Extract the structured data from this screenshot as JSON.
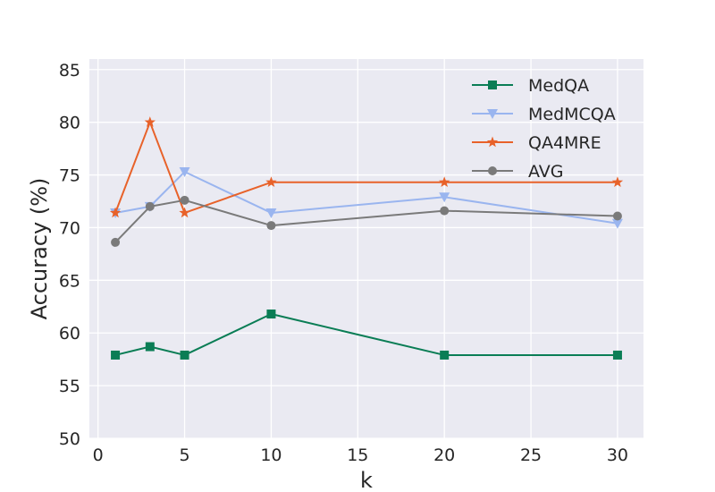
{
  "chart_data": {
    "type": "line",
    "title": "",
    "xlabel": "k",
    "ylabel": "Accuracy (%)",
    "xlim": [
      -0.5,
      31.5
    ],
    "ylim": [
      50,
      86
    ],
    "xticks": [
      0,
      5,
      10,
      15,
      20,
      25,
      30
    ],
    "yticks": [
      50,
      55,
      60,
      65,
      70,
      75,
      80,
      85
    ],
    "grid": true,
    "legend_position": "top-right",
    "x": [
      1,
      3,
      5,
      10,
      20,
      30
    ],
    "series": [
      {
        "name": "MedQA",
        "color": "#0a7d55",
        "marker": "square",
        "values": [
          57.9,
          58.7,
          57.9,
          61.8,
          57.9,
          57.9
        ]
      },
      {
        "name": "MedMCQA",
        "color": "#9ab5ef",
        "marker": "triangle-down",
        "values": [
          71.4,
          72.0,
          75.3,
          71.4,
          72.9,
          70.4
        ]
      },
      {
        "name": "QA4MRE",
        "color": "#e8622a",
        "marker": "star",
        "values": [
          71.4,
          80.0,
          71.4,
          74.3,
          74.3,
          74.3
        ]
      },
      {
        "name": "AVG",
        "color": "#7a7a7a",
        "marker": "circle",
        "values": [
          68.6,
          72.0,
          72.6,
          70.2,
          71.6,
          71.1
        ]
      }
    ]
  }
}
